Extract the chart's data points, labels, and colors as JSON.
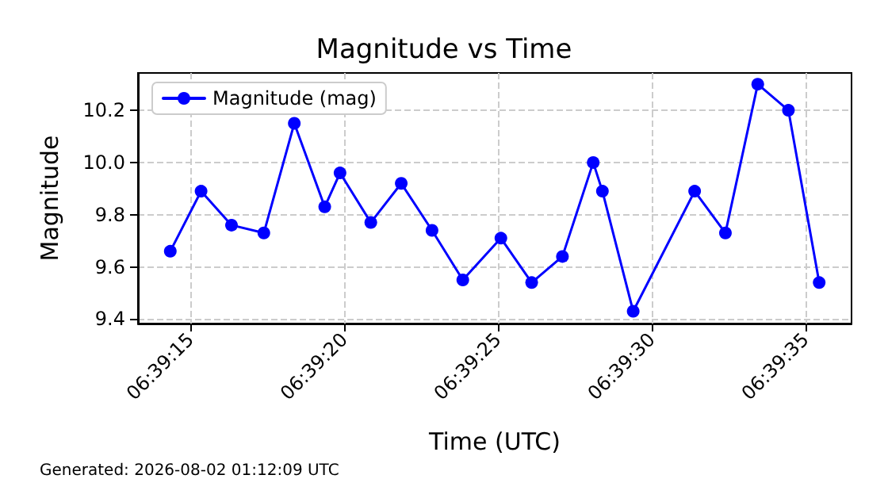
{
  "chart_data": {
    "type": "line",
    "title": "Magnitude vs Time",
    "xlabel": "Time (UTC)",
    "ylabel": "Magnitude",
    "annotations": [
      "Generated: 2026-08-02 01:12:09 UTC"
    ],
    "x": [
      6.653986,
      6.654264,
      6.654539,
      6.654831,
      6.655106,
      6.655381,
      6.655519,
      6.655797,
      6.656072,
      6.65635,
      6.656628,
      6.656972,
      6.65725,
      6.657528,
      6.657806,
      6.657889,
      6.658167,
      6.658722,
      6.659,
      6.659292,
      6.659569,
      6.659847
    ],
    "series": [
      {
        "name": "Magnitude (mag)",
        "color": "#0000ff",
        "values": [
          9.66,
          9.89,
          9.76,
          9.73,
          10.15,
          9.83,
          9.96,
          9.77,
          9.92,
          9.74,
          9.55,
          9.71,
          9.54,
          9.64,
          10.0,
          9.89,
          9.43,
          9.89,
          9.73,
          10.3,
          10.2,
          9.54
        ]
      }
    ],
    "xlim": [
      6.653694,
      6.660139
    ],
    "xticks": [
      {
        "value": 6.654167,
        "label": "06:39:15"
      },
      {
        "value": 6.655556,
        "label": "06:39:20"
      },
      {
        "value": 6.656944,
        "label": "06:39:25"
      },
      {
        "value": 6.658333,
        "label": "06:39:30"
      },
      {
        "value": 6.659722,
        "label": "06:39:35"
      }
    ],
    "ylim": [
      9.383,
      10.343
    ],
    "yticks": [
      {
        "value": 9.4,
        "label": "9.4"
      },
      {
        "value": 9.6,
        "label": "9.6"
      },
      {
        "value": 9.8,
        "label": "9.8"
      },
      {
        "value": 10.0,
        "label": "10.0"
      },
      {
        "value": 10.2,
        "label": "10.2"
      }
    ],
    "grid": true,
    "legend": "top left",
    "marker": "circle",
    "line_style": "solid"
  }
}
